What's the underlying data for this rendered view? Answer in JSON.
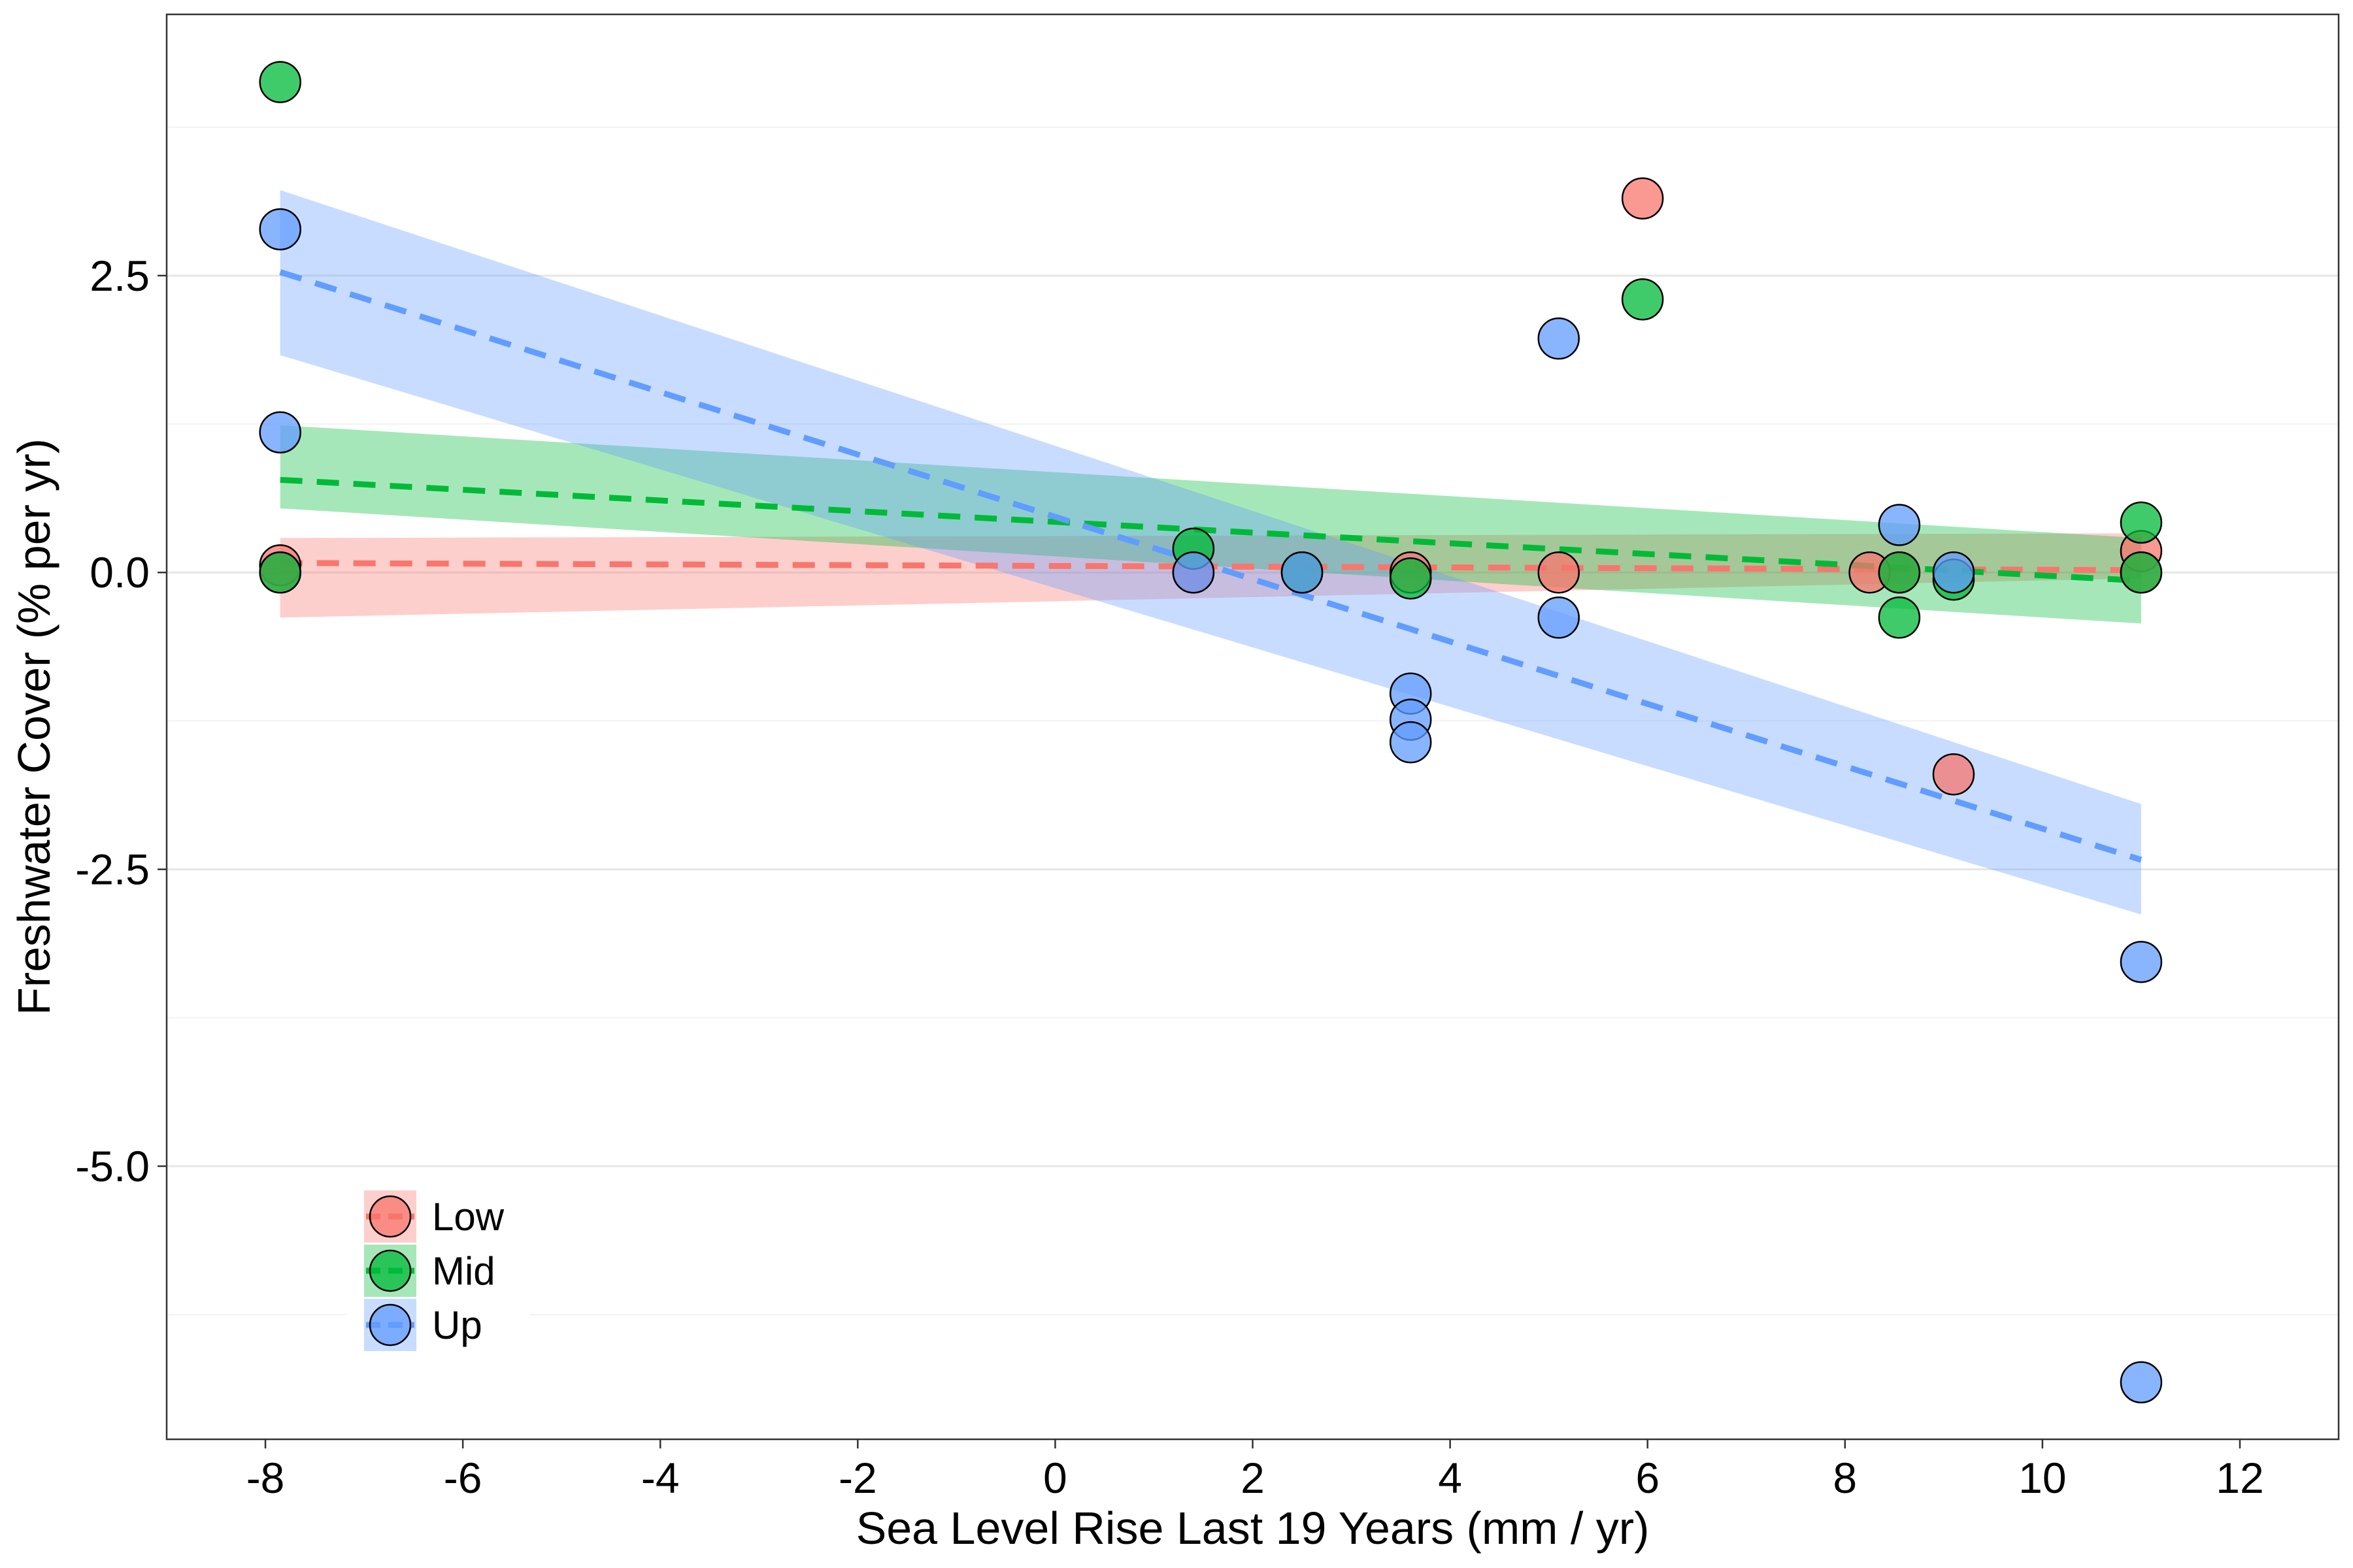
{
  "chart_data": {
    "type": "scatter",
    "xlabel": "Sea Level Rise Last 19 Years (mm / yr)",
    "ylabel": "Freshwater Cover (% per yr)",
    "xlim": [
      -9,
      13
    ],
    "ylim": [
      -7.3,
      4.7
    ],
    "xticks": [
      -8,
      -6,
      -4,
      -2,
      0,
      2,
      4,
      6,
      8,
      10,
      12
    ],
    "yticks": [
      2.5,
      0.0,
      -2.5,
      -5.0
    ],
    "ytick_labels": [
      "2.5",
      "0.0",
      "-2.5",
      "-5.0"
    ],
    "y_minor_gridlines": [
      3.75,
      1.25,
      -1.25,
      -3.75,
      -6.25
    ],
    "grid": true,
    "legend_position": "bottom-left",
    "series": [
      {
        "name": "Low",
        "color": "#F8766D",
        "points": [
          {
            "x": -7.85,
            "y": 0.06
          },
          {
            "x": -7.85,
            "y": 0.0
          },
          {
            "x": 1.4,
            "y": 0.0
          },
          {
            "x": 2.5,
            "y": 0.0
          },
          {
            "x": 3.6,
            "y": 0.0
          },
          {
            "x": 5.1,
            "y": 0.0
          },
          {
            "x": 5.95,
            "y": 3.15
          },
          {
            "x": 8.25,
            "y": 0.0
          },
          {
            "x": 8.55,
            "y": 0.0
          },
          {
            "x": 9.1,
            "y": -1.7
          },
          {
            "x": 11.0,
            "y": 0.18
          },
          {
            "x": 11.0,
            "y": 0.0
          }
        ],
        "fit": {
          "x": [
            -7.85,
            11.0
          ],
          "y": [
            0.08,
            0.02
          ]
        },
        "ci_lower": [
          -0.38,
          -0.05
        ],
        "ci_upper": [
          0.29,
          0.33
        ]
      },
      {
        "name": "Mid",
        "color": "#00BA38",
        "points": [
          {
            "x": -7.85,
            "y": 4.13
          },
          {
            "x": -7.85,
            "y": 0.0
          },
          {
            "x": 1.4,
            "y": 0.2
          },
          {
            "x": 2.5,
            "y": 0.0
          },
          {
            "x": 3.6,
            "y": -0.05
          },
          {
            "x": 5.95,
            "y": 2.3
          },
          {
            "x": 8.55,
            "y": -0.38
          },
          {
            "x": 8.55,
            "y": 0.0
          },
          {
            "x": 9.1,
            "y": -0.06
          },
          {
            "x": 11.0,
            "y": 0.42
          },
          {
            "x": 11.0,
            "y": 0.0
          }
        ],
        "fit": {
          "x": [
            -7.85,
            11.0
          ],
          "y": [
            0.78,
            -0.07
          ]
        },
        "ci_lower": [
          0.54,
          -0.43
        ],
        "ci_upper": [
          1.24,
          0.29
        ]
      },
      {
        "name": "Up",
        "color": "#619CFF",
        "points": [
          {
            "x": -7.85,
            "y": 2.89
          },
          {
            "x": -7.85,
            "y": 1.18
          },
          {
            "x": 1.4,
            "y": 0.0
          },
          {
            "x": 2.5,
            "y": 0.0
          },
          {
            "x": 3.6,
            "y": -1.02
          },
          {
            "x": 3.6,
            "y": -1.24
          },
          {
            "x": 3.6,
            "y": -1.43
          },
          {
            "x": 5.1,
            "y": 1.97
          },
          {
            "x": 5.1,
            "y": -0.38
          },
          {
            "x": 8.55,
            "y": 0.4
          },
          {
            "x": 9.1,
            "y": 0.0
          },
          {
            "x": 11.0,
            "y": -3.28
          },
          {
            "x": 11.0,
            "y": -6.82
          }
        ],
        "fit": {
          "x": [
            -7.85,
            11.0
          ],
          "y": [
            2.53,
            -2.42
          ]
        },
        "ci_lower": [
          1.83,
          -2.88
        ],
        "ci_upper": [
          3.22,
          -1.95
        ]
      }
    ]
  }
}
